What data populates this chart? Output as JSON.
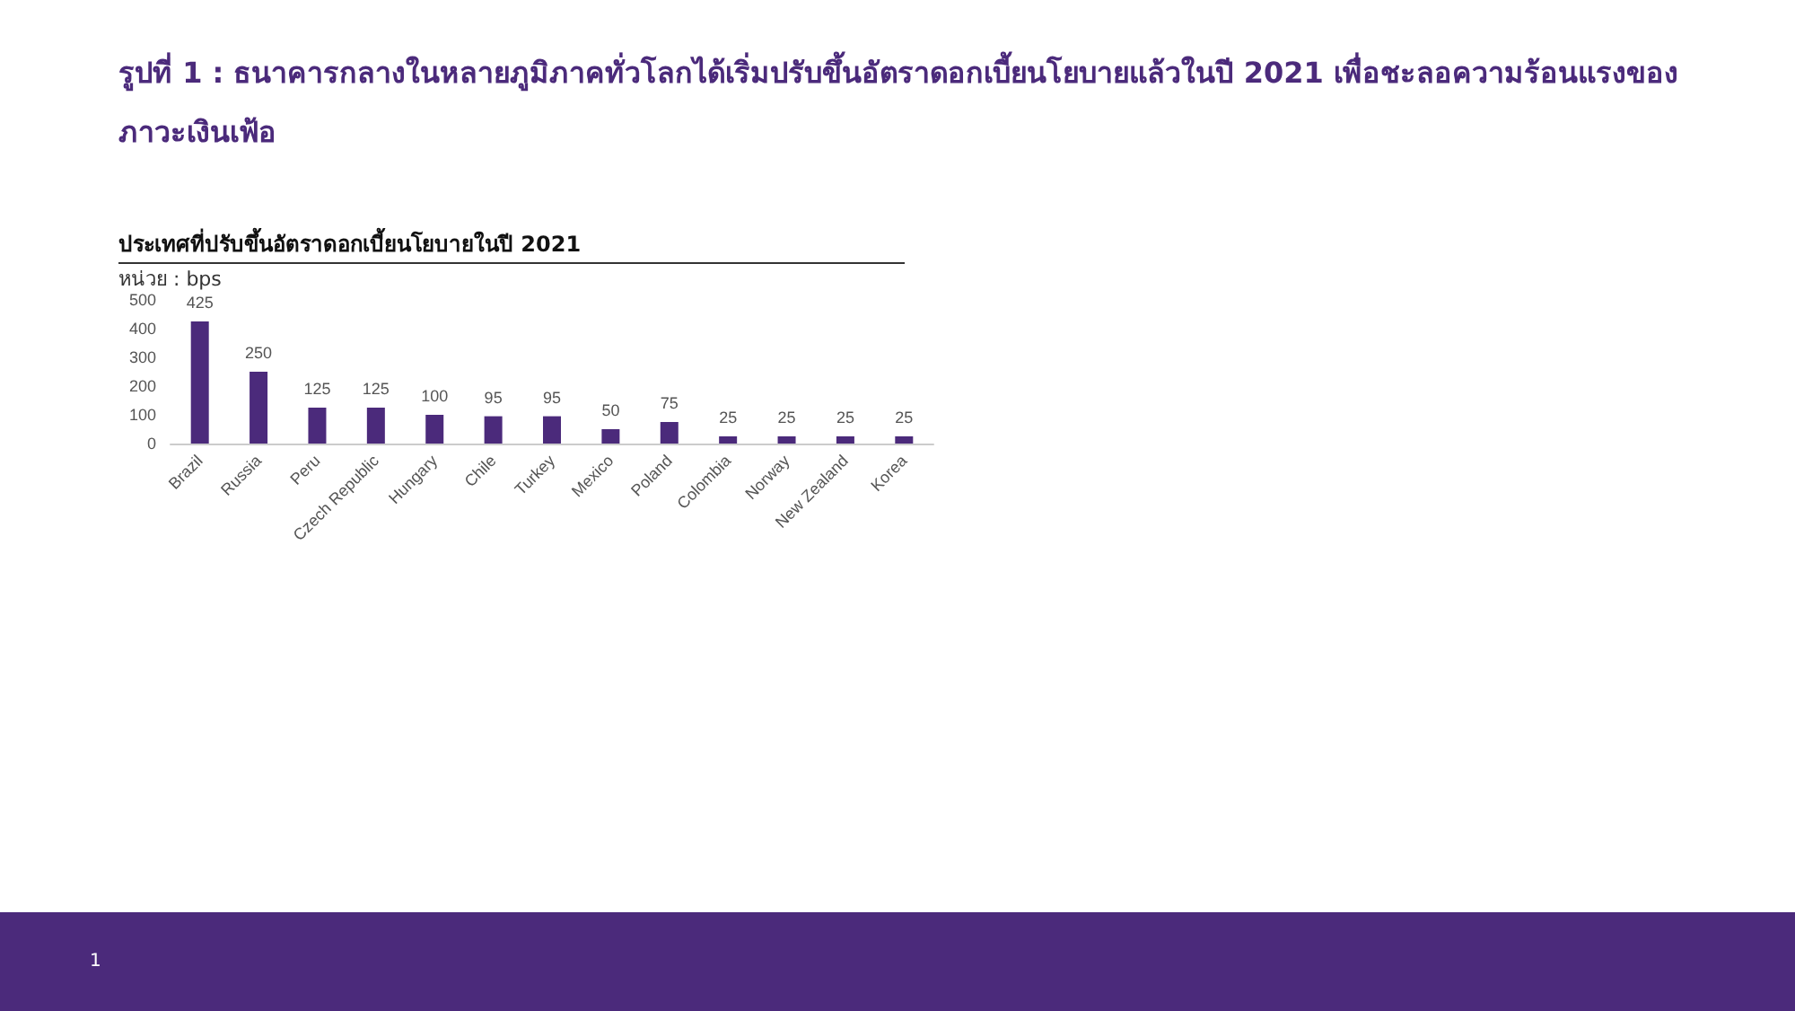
{
  "chart_data": {
    "type": "bar",
    "title": "รูปที่ 1 : ธนาคารกลางในหลายภูมิภาคทั่วโลกได้เริ่มปรับขึ้นอัตราดอกเบี้ยนโยบายแล้วในปี 2021 เพื่อชะลอความร้อนแรงของภาวะเงินเฟ้อ",
    "subtitle": "ประเทศที่ปรับขึ้นอัตราดอกเบี้ยนโยบายในปี 2021",
    "ylabel": "หน่วย : bps",
    "categories": [
      "Brazil",
      "Russia",
      "Peru",
      "Czech Republic",
      "Hungary",
      "Chile",
      "Turkey",
      "Mexico",
      "Poland",
      "Colombia",
      "Norway",
      "New Zealand",
      "Korea"
    ],
    "values": [
      425,
      250,
      125,
      125,
      100,
      95,
      95,
      50,
      75,
      25,
      25,
      25,
      25
    ],
    "color": "#4b2a7b",
    "ylim": [
      0,
      500
    ],
    "yticks": [
      0,
      100,
      200,
      300,
      400,
      500
    ],
    "grid": false,
    "data_labels": true,
    "annotations": [
      "1"
    ]
  }
}
